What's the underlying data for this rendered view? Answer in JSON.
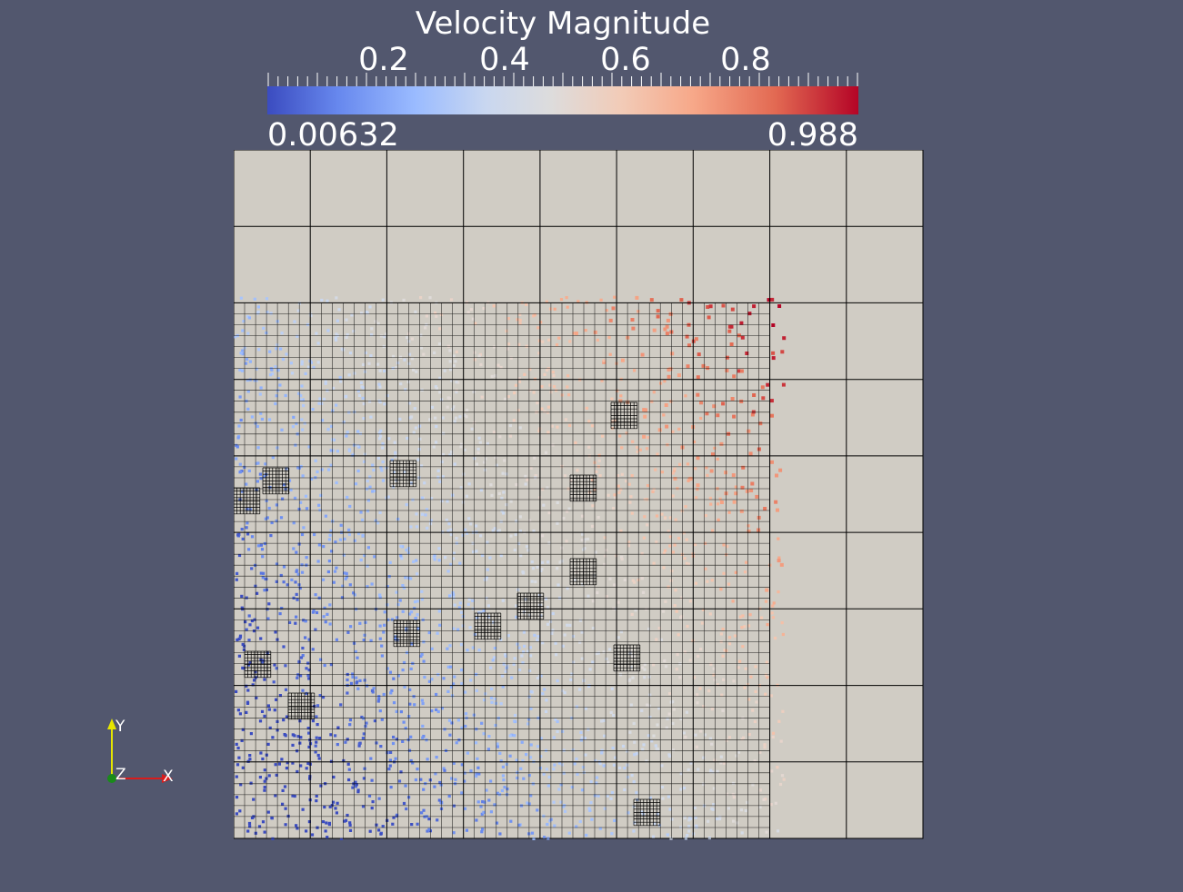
{
  "legend": {
    "title": "Velocity Magnitude",
    "tick_labels": [
      {
        "text": "0.2",
        "value": 0.2
      },
      {
        "text": "0.4",
        "value": 0.4
      },
      {
        "text": "0.6",
        "value": 0.6
      },
      {
        "text": "0.8",
        "value": 0.8
      }
    ],
    "range_min": "0.00632",
    "range_max": "0.988",
    "colormap": "cool-to-warm",
    "colormap_stops": [
      "#3b4cc0",
      "#6788ee",
      "#9abbff",
      "#c9d7f0",
      "#dddcdc",
      "#f2cbb7",
      "#f7a889",
      "#e26952",
      "#b40426"
    ]
  },
  "orientation_axes": {
    "y_label": "Y",
    "z_label": "Z",
    "x_label": "X",
    "y_color": "#e6e600",
    "x_color": "#d81c1c",
    "z_color": "#1a8a1a"
  },
  "scene": {
    "background_color": "#52576e",
    "domain_color": "#d0ccc4",
    "grid_line_color": "#000000",
    "coarse_grid": {
      "columns": 9,
      "rows": 9
    },
    "refined_region": "lower-left portion of domain",
    "coloring": "particles colored by velocity magnitude, low (blue) at lower-left, high (red) at upper-right"
  }
}
